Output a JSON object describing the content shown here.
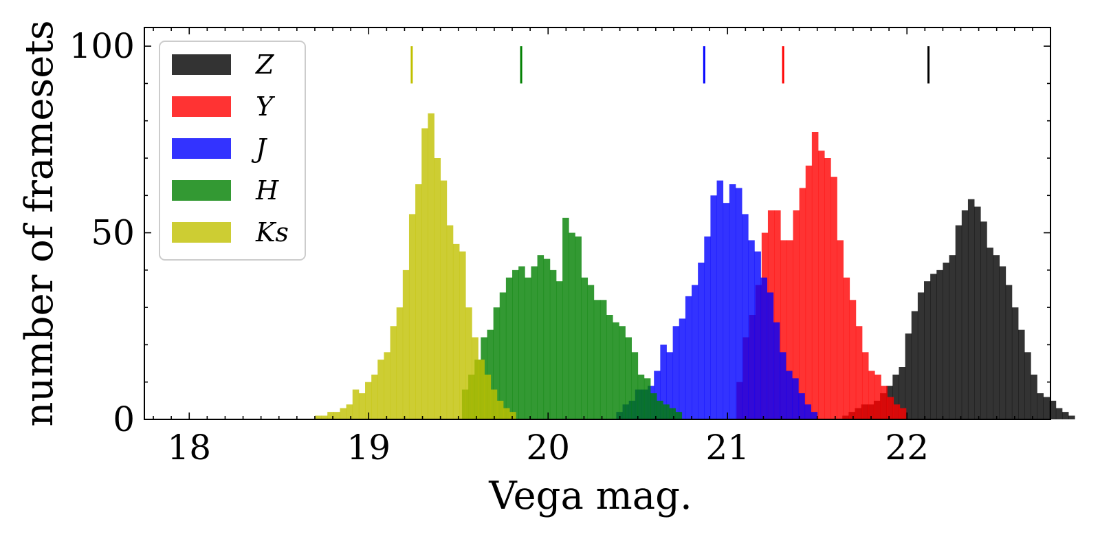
{
  "chart_data": {
    "type": "bar",
    "subtype": "histogram",
    "xlabel": "Vega mag.",
    "ylabel": "number of framesets",
    "xlim": [
      17.75,
      22.8
    ],
    "ylim": [
      0,
      105
    ],
    "xticks": [
      18,
      19,
      20,
      21,
      22
    ],
    "yticks": [
      0,
      50,
      100
    ],
    "legend_position": "top-left",
    "bin_width": 0.035,
    "series": [
      {
        "name": "Z",
        "color": "#000000",
        "marker_mag": 22.12,
        "bins": [
          [
            21.64,
            1
          ],
          [
            21.675,
            2
          ],
          [
            21.71,
            3
          ],
          [
            21.745,
            4
          ],
          [
            21.78,
            4
          ],
          [
            21.815,
            5
          ],
          [
            21.85,
            7
          ],
          [
            21.885,
            9
          ],
          [
            21.92,
            12
          ],
          [
            21.955,
            14
          ],
          [
            21.99,
            23
          ],
          [
            22.025,
            29
          ],
          [
            22.06,
            34
          ],
          [
            22.095,
            37
          ],
          [
            22.13,
            39
          ],
          [
            22.165,
            40
          ],
          [
            22.2,
            42
          ],
          [
            22.235,
            44
          ],
          [
            22.27,
            52
          ],
          [
            22.305,
            56
          ],
          [
            22.34,
            59
          ],
          [
            22.375,
            57
          ],
          [
            22.41,
            53
          ],
          [
            22.445,
            46
          ],
          [
            22.48,
            44
          ],
          [
            22.515,
            41
          ],
          [
            22.55,
            36
          ],
          [
            22.585,
            30
          ],
          [
            22.62,
            24
          ],
          [
            22.655,
            18
          ],
          [
            22.69,
            12
          ],
          [
            22.725,
            7
          ],
          [
            22.76,
            6
          ],
          [
            22.795,
            5
          ],
          [
            22.83,
            3
          ],
          [
            22.865,
            2
          ],
          [
            22.9,
            1
          ]
        ]
      },
      {
        "name": "Y",
        "color": "#ff0000",
        "marker_mag": 21.31,
        "bins": [
          [
            21.05,
            10
          ],
          [
            21.085,
            22
          ],
          [
            21.12,
            28
          ],
          [
            21.155,
            36
          ],
          [
            21.19,
            50
          ],
          [
            21.225,
            56
          ],
          [
            21.26,
            56
          ],
          [
            21.295,
            48
          ],
          [
            21.33,
            48
          ],
          [
            21.365,
            56
          ],
          [
            21.4,
            62
          ],
          [
            21.435,
            68
          ],
          [
            21.47,
            77
          ],
          [
            21.505,
            72
          ],
          [
            21.54,
            70
          ],
          [
            21.575,
            65
          ],
          [
            21.61,
            48
          ],
          [
            21.645,
            38
          ],
          [
            21.68,
            32
          ],
          [
            21.715,
            25
          ],
          [
            21.75,
            18
          ],
          [
            21.785,
            13
          ],
          [
            21.82,
            12
          ],
          [
            21.855,
            9
          ],
          [
            21.89,
            6
          ],
          [
            21.925,
            4
          ],
          [
            21.96,
            3
          ]
        ]
      },
      {
        "name": "J",
        "color": "#0000ff",
        "marker_mag": 20.87,
        "bins": [
          [
            20.38,
            2
          ],
          [
            20.415,
            4
          ],
          [
            20.45,
            5
          ],
          [
            20.485,
            8
          ],
          [
            20.52,
            8
          ],
          [
            20.555,
            9
          ],
          [
            20.59,
            13
          ],
          [
            20.625,
            20
          ],
          [
            20.66,
            18
          ],
          [
            20.695,
            25
          ],
          [
            20.73,
            27
          ],
          [
            20.765,
            33
          ],
          [
            20.8,
            36
          ],
          [
            20.835,
            42
          ],
          [
            20.87,
            49
          ],
          [
            20.905,
            60
          ],
          [
            20.94,
            64
          ],
          [
            20.975,
            58
          ],
          [
            21.01,
            63
          ],
          [
            21.045,
            62
          ],
          [
            21.08,
            55
          ],
          [
            21.115,
            48
          ],
          [
            21.15,
            45
          ],
          [
            21.185,
            38
          ],
          [
            21.22,
            34
          ],
          [
            21.255,
            26
          ],
          [
            21.29,
            18
          ],
          [
            21.325,
            13
          ],
          [
            21.36,
            11
          ],
          [
            21.395,
            7
          ],
          [
            21.43,
            4
          ],
          [
            21.465,
            2
          ]
        ]
      },
      {
        "name": "H",
        "color": "#008000",
        "marker_mag": 19.85,
        "bins": [
          [
            19.52,
            8
          ],
          [
            19.555,
            12
          ],
          [
            19.59,
            16
          ],
          [
            19.625,
            22
          ],
          [
            19.66,
            24
          ],
          [
            19.695,
            30
          ],
          [
            19.73,
            34
          ],
          [
            19.765,
            38
          ],
          [
            19.8,
            40
          ],
          [
            19.835,
            41
          ],
          [
            19.87,
            38
          ],
          [
            19.905,
            41
          ],
          [
            19.94,
            44
          ],
          [
            19.975,
            43
          ],
          [
            20.01,
            40
          ],
          [
            20.045,
            37
          ],
          [
            20.08,
            54
          ],
          [
            20.115,
            50
          ],
          [
            20.15,
            49
          ],
          [
            20.185,
            38
          ],
          [
            20.22,
            36
          ],
          [
            20.255,
            32
          ],
          [
            20.29,
            32
          ],
          [
            20.325,
            28
          ],
          [
            20.36,
            26
          ],
          [
            20.395,
            25
          ],
          [
            20.43,
            22
          ],
          [
            20.465,
            18
          ],
          [
            20.5,
            12
          ],
          [
            20.535,
            11
          ],
          [
            20.57,
            7
          ],
          [
            20.605,
            5
          ],
          [
            20.64,
            4
          ],
          [
            20.675,
            3
          ],
          [
            20.71,
            2
          ]
        ]
      },
      {
        "name": "Ks",
        "color": "#c0c000",
        "marker_mag": 19.24,
        "bins": [
          [
            18.7,
            1
          ],
          [
            18.735,
            1
          ],
          [
            18.77,
            2
          ],
          [
            18.805,
            2
          ],
          [
            18.84,
            3
          ],
          [
            18.875,
            4
          ],
          [
            18.91,
            8
          ],
          [
            18.945,
            7
          ],
          [
            18.98,
            10
          ],
          [
            19.015,
            12
          ],
          [
            19.05,
            16
          ],
          [
            19.085,
            18
          ],
          [
            19.12,
            25
          ],
          [
            19.155,
            30
          ],
          [
            19.19,
            40
          ],
          [
            19.225,
            55
          ],
          [
            19.26,
            63
          ],
          [
            19.295,
            78
          ],
          [
            19.33,
            82
          ],
          [
            19.365,
            70
          ],
          [
            19.4,
            64
          ],
          [
            19.435,
            52
          ],
          [
            19.47,
            47
          ],
          [
            19.505,
            45
          ],
          [
            19.54,
            30
          ],
          [
            19.575,
            22
          ],
          [
            19.61,
            16
          ],
          [
            19.645,
            12
          ],
          [
            19.68,
            8
          ],
          [
            19.715,
            5
          ],
          [
            19.75,
            3
          ],
          [
            19.785,
            2
          ]
        ]
      }
    ]
  }
}
